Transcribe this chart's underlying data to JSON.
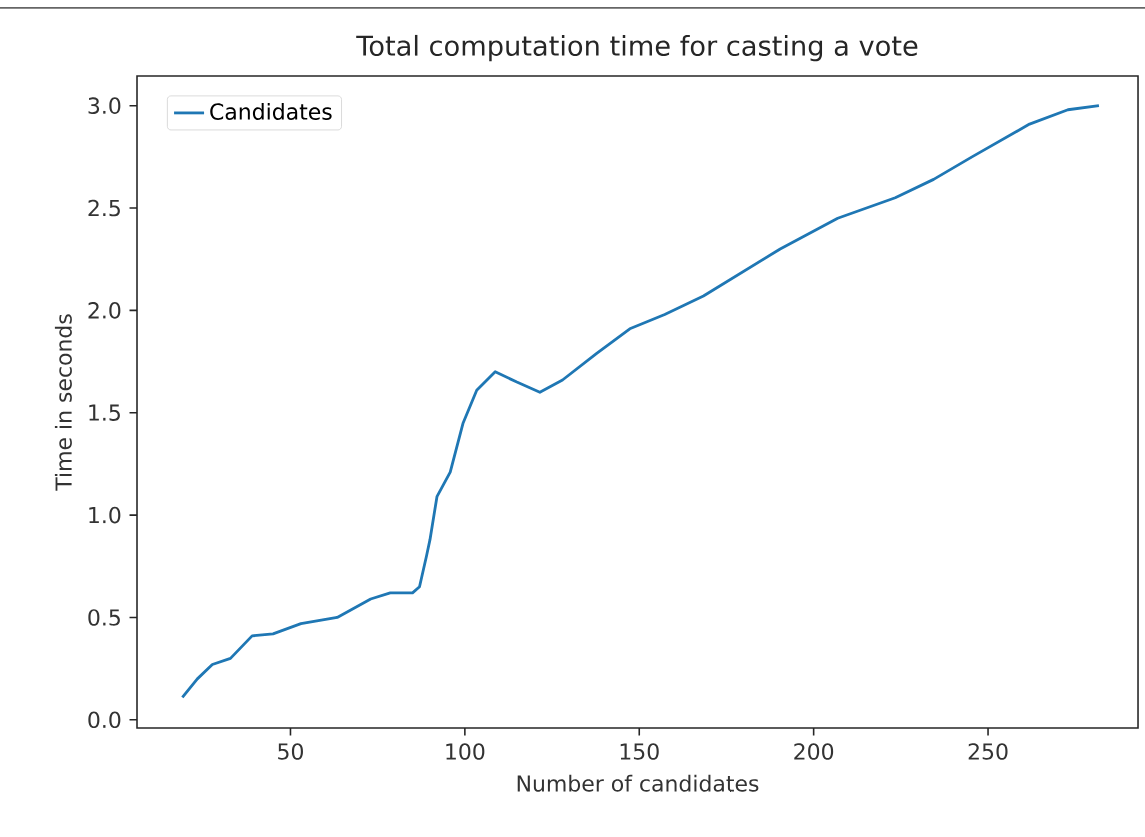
{
  "chart_data": {
    "type": "line",
    "title": "Total computation time for casting a vote",
    "xlabel": "Number of candidates",
    "ylabel": "Time in seconds",
    "xlim": [
      6,
      293
    ],
    "ylim": [
      -0.04,
      3.145
    ],
    "xticks": [
      50,
      100,
      150,
      200,
      250
    ],
    "yticks": [
      {
        "value": 0,
        "label": "0.0"
      },
      0.5,
      {
        "value": 1,
        "label": "1.0"
      },
      1.5,
      {
        "value": 2,
        "label": "2.0"
      },
      2.5,
      {
        "value": 3,
        "label": "3.0"
      }
    ],
    "legend": "top left",
    "grid": false,
    "series": [
      {
        "name": "Candidates",
        "color": "#1f77b4",
        "x": [
          19,
          23.3,
          27.6,
          32.8,
          39,
          45,
          53,
          63.4,
          73,
          78.6,
          85,
          87,
          89,
          90,
          92,
          95.8,
          99.5,
          103.4,
          108.7,
          114.9,
          121.5,
          128,
          137.8,
          147.3,
          157.3,
          168.4,
          190.4,
          206.9,
          223.4,
          234.4,
          245.4,
          261.9,
          272.9,
          281.8
        ],
        "values": [
          0.11,
          0.2,
          0.27,
          0.3,
          0.41,
          0.42,
          0.47,
          0.5,
          0.59,
          0.62,
          0.62,
          0.65,
          0.8,
          0.88,
          1.09,
          1.21,
          1.45,
          1.61,
          1.7,
          1.65,
          1.6,
          1.66,
          1.79,
          1.91,
          1.98,
          2.07,
          2.3,
          2.45,
          2.55,
          2.64,
          2.75,
          2.91,
          2.98,
          3.0
        ]
      }
    ]
  }
}
